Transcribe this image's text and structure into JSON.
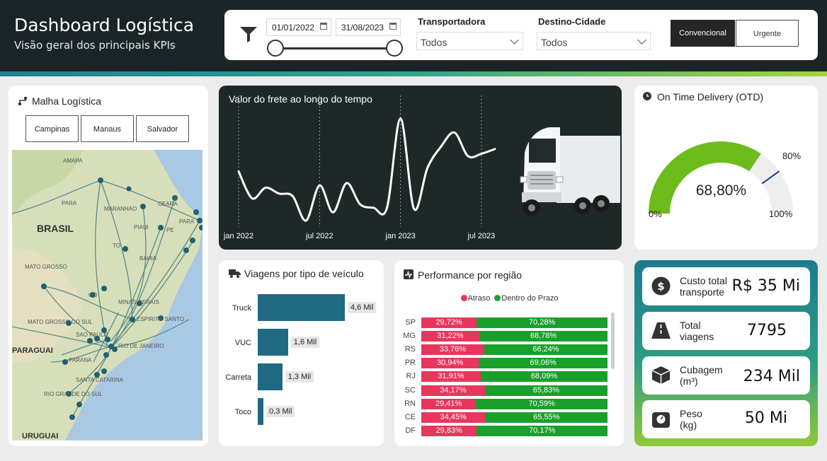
{
  "header": {
    "title": "Dashboard Logística",
    "subtitle": "Visão geral dos principais KPIs"
  },
  "filters": {
    "date_start": "01/01/2022",
    "date_end": "31/08/2023",
    "date_range_fraction": [
      0,
      1
    ],
    "carrier_label": "Transportadora",
    "carrier_value": "Todos",
    "city_label": "Destino-Cidade",
    "city_value": "Todos",
    "toggle_options": [
      "Convencional",
      "Urgente"
    ],
    "toggle_selected": "Convencional"
  },
  "malha": {
    "title": "Malha Logística",
    "city_buttons": [
      "Campinas",
      "Manaus",
      "Salvador"
    ],
    "map_labels": {
      "amapa": "AMAPA",
      "para": "PARA",
      "maranhao": "MARANHAO",
      "ceara": "CEARA",
      "piaui": "PIAUI",
      "pe": "PE",
      "paraiba": "PARA",
      "brasil": "BRASIL",
      "to": "TO",
      "bahia": "BAHIA",
      "mato_grosso": "MATO GROSSO",
      "goias": "GO",
      "minas": "MINAS GERAIS",
      "espirito": "ESPIRITO SANTO",
      "ms": "MATO GROSSO DO SUL",
      "sp": "SAO PAULO",
      "rj": "RIO DE JANEIRO",
      "pr": "PARANA",
      "sc": "SANTA CATARINA",
      "rs": "RIO GRANDE DO SUL",
      "paraguai": "PARAGUAI",
      "uruguai": "URUGUAI"
    }
  },
  "freight": {
    "title": "Valor do frete ao longo do tempo",
    "x_ticks": [
      "jan 2022",
      "jul 2022",
      "jan 2023",
      "jul 2023"
    ]
  },
  "otd": {
    "title": "On Time Delivery (OTD)",
    "value_label": "68,80%",
    "target_label": "80%",
    "min_label": "0%",
    "max_label": "100%",
    "value": 68.8,
    "target": 80,
    "colors": {
      "fill": "#6cbd1c",
      "track": "#eeeeee",
      "target": "#1f3c8a"
    }
  },
  "vehicles": {
    "title": "Viagens por tipo de veículo"
  },
  "regions": {
    "title": "Performance por região",
    "legend": [
      "Atraso",
      "Dentro do Prazo"
    ],
    "colors": {
      "late": "#e8365d",
      "on_time": "#19a02a"
    }
  },
  "kpis": [
    {
      "label_1": "Custo total",
      "label_2": "transporte",
      "value": "R$ 35 Mi",
      "icon": "dollar-icon"
    },
    {
      "label_1": "Total",
      "label_2": "viagens",
      "value": "7795",
      "icon": "road-icon"
    },
    {
      "label_1": "Cubagem",
      "label_2": "(m³)",
      "value": "234 Mil",
      "icon": "box-icon"
    },
    {
      "label_1": "Peso",
      "label_2": "(kg)",
      "value": "50 Mi",
      "icon": "weight-icon"
    }
  ],
  "chart_data": [
    {
      "type": "line",
      "title": "Valor do frete ao longo do tempo",
      "x": [
        "2022-01",
        "2022-02",
        "2022-03",
        "2022-04",
        "2022-05",
        "2022-06",
        "2022-07",
        "2022-08",
        "2022-09",
        "2022-10",
        "2022-11",
        "2022-12",
        "2023-01",
        "2023-02",
        "2023-03",
        "2023-04",
        "2023-05",
        "2023-06",
        "2023-07",
        "2023-08"
      ],
      "x_tick_labels": [
        "jan 2022",
        "jul 2022",
        "jan 2023",
        "jul 2023"
      ],
      "values": [
        45,
        22,
        31,
        26,
        24,
        3,
        33,
        10,
        35,
        17,
        14,
        14,
        90,
        13,
        48,
        66,
        78,
        58,
        60,
        64
      ],
      "ylim": [
        0,
        100
      ],
      "color": "#ffffff"
    },
    {
      "type": "bar",
      "title": "Viagens por tipo de veículo",
      "orientation": "horizontal",
      "categories": [
        "Truck",
        "VUC",
        "Carreta",
        "Toco"
      ],
      "values": [
        4.6,
        1.6,
        1.3,
        0.3
      ],
      "value_labels": [
        "4,6 Mil",
        "1,6 Mil",
        "1,3 Mil",
        "0,3 Mil"
      ],
      "unit": "Mil",
      "color": "#1f6a82"
    },
    {
      "type": "bar",
      "title": "Performance por região",
      "stacked": "percent",
      "orientation": "horizontal",
      "categories": [
        "SP",
        "MG",
        "RS",
        "PR",
        "RJ",
        "SC",
        "RN",
        "CE",
        "DF"
      ],
      "series": [
        {
          "name": "Atraso",
          "values": [
            29.72,
            31.22,
            33.76,
            30.94,
            31.91,
            34.17,
            29.41,
            34.45,
            29.83
          ],
          "labels": [
            "29,72%",
            "31,22%",
            "33,76%",
            "30,94%",
            "31,91%",
            "34,17%",
            "29,41%",
            "34,45%",
            "29,83%"
          ]
        },
        {
          "name": "Dentro do Prazo",
          "values": [
            70.28,
            68.78,
            66.24,
            69.06,
            68.09,
            65.83,
            70.59,
            65.55,
            70.17
          ],
          "labels": [
            "70,28%",
            "68,78%",
            "66,24%",
            "69,06%",
            "68,09%",
            "65,83%",
            "70,59%",
            "65,55%",
            "70,17%"
          ]
        }
      ]
    }
  ]
}
